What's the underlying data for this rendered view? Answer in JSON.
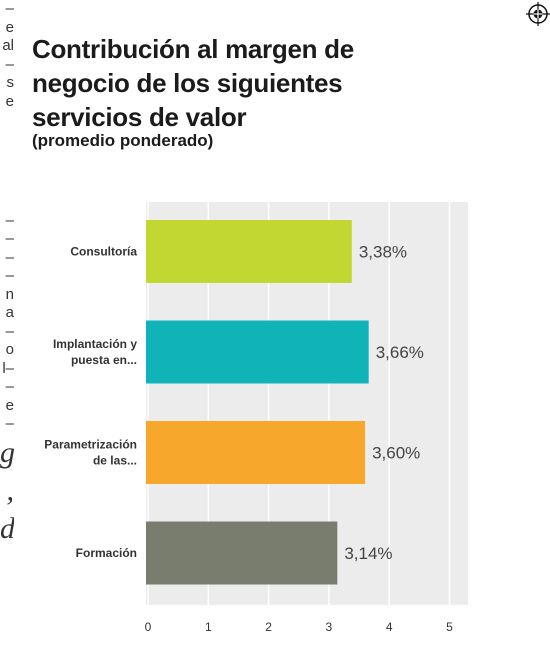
{
  "left_column_fragments": [
    "–",
    "e",
    "al",
    "–",
    "s",
    "e",
    "",
    "",
    "",
    "",
    "",
    "–",
    "–",
    "–",
    "–",
    "n",
    "a",
    "–",
    "o",
    "l–",
    "–",
    "e",
    "–",
    "g",
    ",",
    "d"
  ],
  "chart_data": {
    "type": "bar",
    "orientation": "horizontal",
    "title": "Contribución al margen de negocio de los siguientes servicios de valor",
    "subtitle": "(promedio ponderado)",
    "categories": [
      [
        "Consultoría"
      ],
      [
        "Implantación y",
        "puesta en..."
      ],
      [
        "Parametrización",
        "de las..."
      ],
      [
        "Formación"
      ]
    ],
    "values": [
      3.38,
      3.66,
      3.6,
      3.14
    ],
    "value_labels": [
      "3,38%",
      "3,66%",
      "3,60%",
      "3,14%"
    ],
    "colors": [
      "#c3d733",
      "#0fb3b8",
      "#f7a72c",
      "#787d6d"
    ],
    "xlim": [
      0,
      5.3
    ],
    "xticks": [
      0,
      1,
      2,
      3,
      4,
      5
    ],
    "plot_background": "#ececec",
    "grid": true
  }
}
